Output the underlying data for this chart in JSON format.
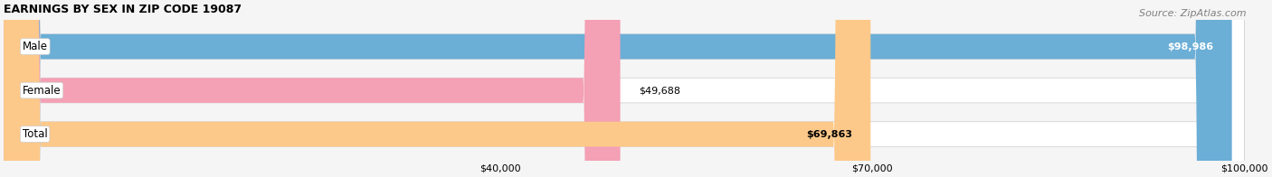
{
  "title": "EARNINGS BY SEX IN ZIP CODE 19087",
  "source": "Source: ZipAtlas.com",
  "categories": [
    "Male",
    "Female",
    "Total"
  ],
  "values": [
    98986,
    49688,
    69863
  ],
  "bar_colors": [
    "#6baed6",
    "#f4a0b5",
    "#fdc98a"
  ],
  "bar_bg_color": "#e8e8e8",
  "label_bg_color": "#ffffff",
  "xmin": 0,
  "xmax": 100000,
  "xticks": [
    40000,
    70000,
    100000
  ],
  "xtick_labels": [
    "$40,000",
    "$70,000",
    "$100,000"
  ],
  "bar_height": 0.55,
  "figsize": [
    14.06,
    1.96
  ],
  "dpi": 100,
  "title_fontsize": 9,
  "label_fontsize": 8.5,
  "value_fontsize": 8,
  "source_fontsize": 8,
  "bg_color": "#f5f5f5"
}
